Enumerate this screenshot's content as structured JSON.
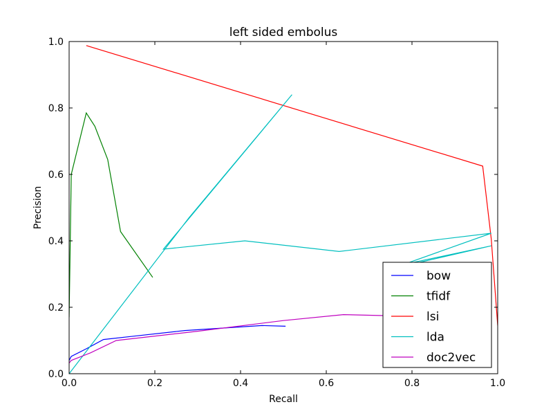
{
  "chart_data": {
    "type": "line",
    "title": "left sided embolus",
    "xlabel": "Recall",
    "ylabel": "Precision",
    "xlim": [
      0,
      1
    ],
    "ylim": [
      0,
      1
    ],
    "xticks": [
      "0.0",
      "0.2",
      "0.4",
      "0.6",
      "0.8",
      "1.0"
    ],
    "yticks": [
      "0.0",
      "0.2",
      "0.4",
      "0.6",
      "0.8",
      "1.0"
    ],
    "grid": false,
    "legend_position": "lower-right",
    "series": [
      {
        "name": "bow",
        "color": "#0000ff",
        "x": [
          0.0,
          0.005,
          0.04,
          0.08,
          0.15,
          0.27,
          0.45,
          0.505
        ],
        "y": [
          0.04,
          0.052,
          0.075,
          0.103,
          0.113,
          0.13,
          0.145,
          0.143
        ]
      },
      {
        "name": "tfidf",
        "color": "#008000",
        "x": [
          0.0,
          0.005,
          0.04,
          0.06,
          0.09,
          0.12,
          0.195
        ],
        "y": [
          0.17,
          0.6,
          0.785,
          0.745,
          0.645,
          0.428,
          0.29
        ]
      },
      {
        "name": "lsi",
        "color": "#ff0000",
        "x": [
          0.04,
          0.965,
          0.985,
          1.0
        ],
        "y": [
          0.988,
          0.625,
          0.405,
          0.145
        ]
      },
      {
        "name": "lda",
        "color": "#00bfbf",
        "x": [
          0.0,
          0.28,
          0.52,
          0.22,
          0.41,
          0.63,
          0.985,
          0.75,
          0.985,
          0.785
        ],
        "y": [
          0.0,
          0.47,
          0.84,
          0.375,
          0.4,
          0.368,
          0.423,
          0.315,
          0.385,
          0.33
        ]
      },
      {
        "name": "doc2vec",
        "color": "#bf00bf",
        "x": [
          0.0,
          0.005,
          0.05,
          0.11,
          0.3,
          0.5,
          0.64,
          0.8
        ],
        "y": [
          0.032,
          0.04,
          0.063,
          0.1,
          0.128,
          0.16,
          0.178,
          0.173
        ]
      }
    ]
  }
}
